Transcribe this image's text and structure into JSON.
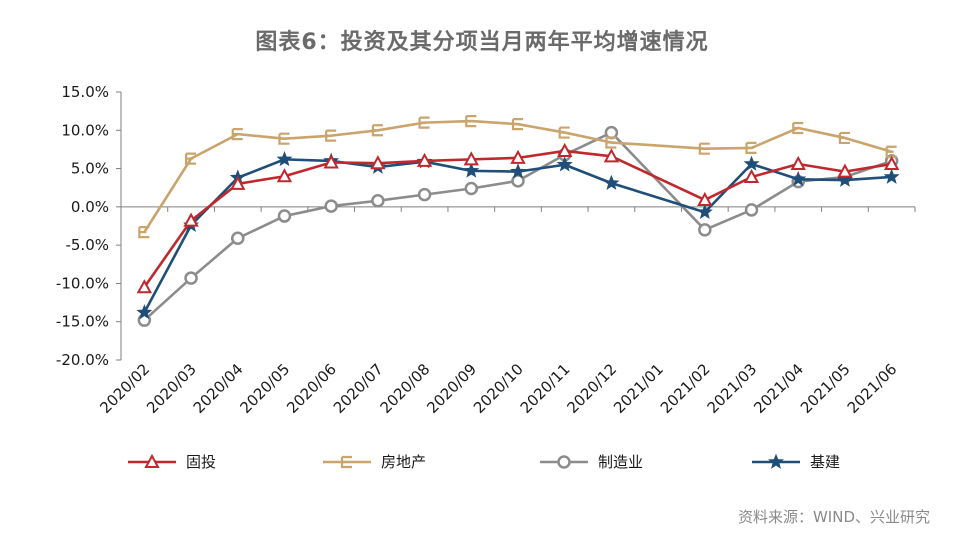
{
  "title": "图表6：投资及其分项当月两年平均增速情况",
  "source": "资料来源：WIND、兴业研究",
  "chart_data": {
    "type": "line",
    "categories": [
      "2020/02",
      "2020/03",
      "2020/04",
      "2020/05",
      "2020/06",
      "2020/07",
      "2020/08",
      "2020/09",
      "2020/10",
      "2020/11",
      "2020/12",
      "2021/01",
      "2021/02",
      "2021/03",
      "2021/04",
      "2021/05",
      "2021/06"
    ],
    "y_ticks": [
      "15.0%",
      "10.0%",
      "5.0%",
      "0.0%",
      "-5.0%",
      "-10.0%",
      "-15.0%",
      "-20.0%"
    ],
    "ylim": [
      -20,
      15
    ],
    "legend_position": "bottom",
    "series": [
      {
        "name": "固投",
        "color": "#c0282d",
        "marker": "triangle",
        "values": [
          -10.5,
          -1.8,
          3.0,
          4.0,
          5.8,
          5.7,
          6.0,
          6.2,
          6.4,
          7.3,
          6.6,
          null,
          0.9,
          3.9,
          5.6,
          4.6,
          5.6
        ]
      },
      {
        "name": "房地产",
        "color": "#c9a46d",
        "marker": "square",
        "values": [
          -3.3,
          6.3,
          9.5,
          8.9,
          9.3,
          10.0,
          11.0,
          11.2,
          10.8,
          9.7,
          8.4,
          null,
          7.6,
          7.7,
          10.3,
          9.0,
          7.2
        ]
      },
      {
        "name": "制造业",
        "color": "#8c8c8c",
        "marker": "circle",
        "values": [
          -14.8,
          -9.3,
          -4.1,
          -1.2,
          0.1,
          0.8,
          1.6,
          2.4,
          3.4,
          6.8,
          9.7,
          null,
          -3.0,
          -0.4,
          3.3,
          3.9,
          6.0
        ]
      },
      {
        "name": "基建",
        "color": "#1f4e79",
        "marker": "star",
        "values": [
          -13.8,
          -2.4,
          3.8,
          6.2,
          6.0,
          5.2,
          5.9,
          4.7,
          4.6,
          5.5,
          3.1,
          null,
          -0.7,
          5.6,
          3.6,
          3.5,
          3.9
        ]
      }
    ]
  }
}
